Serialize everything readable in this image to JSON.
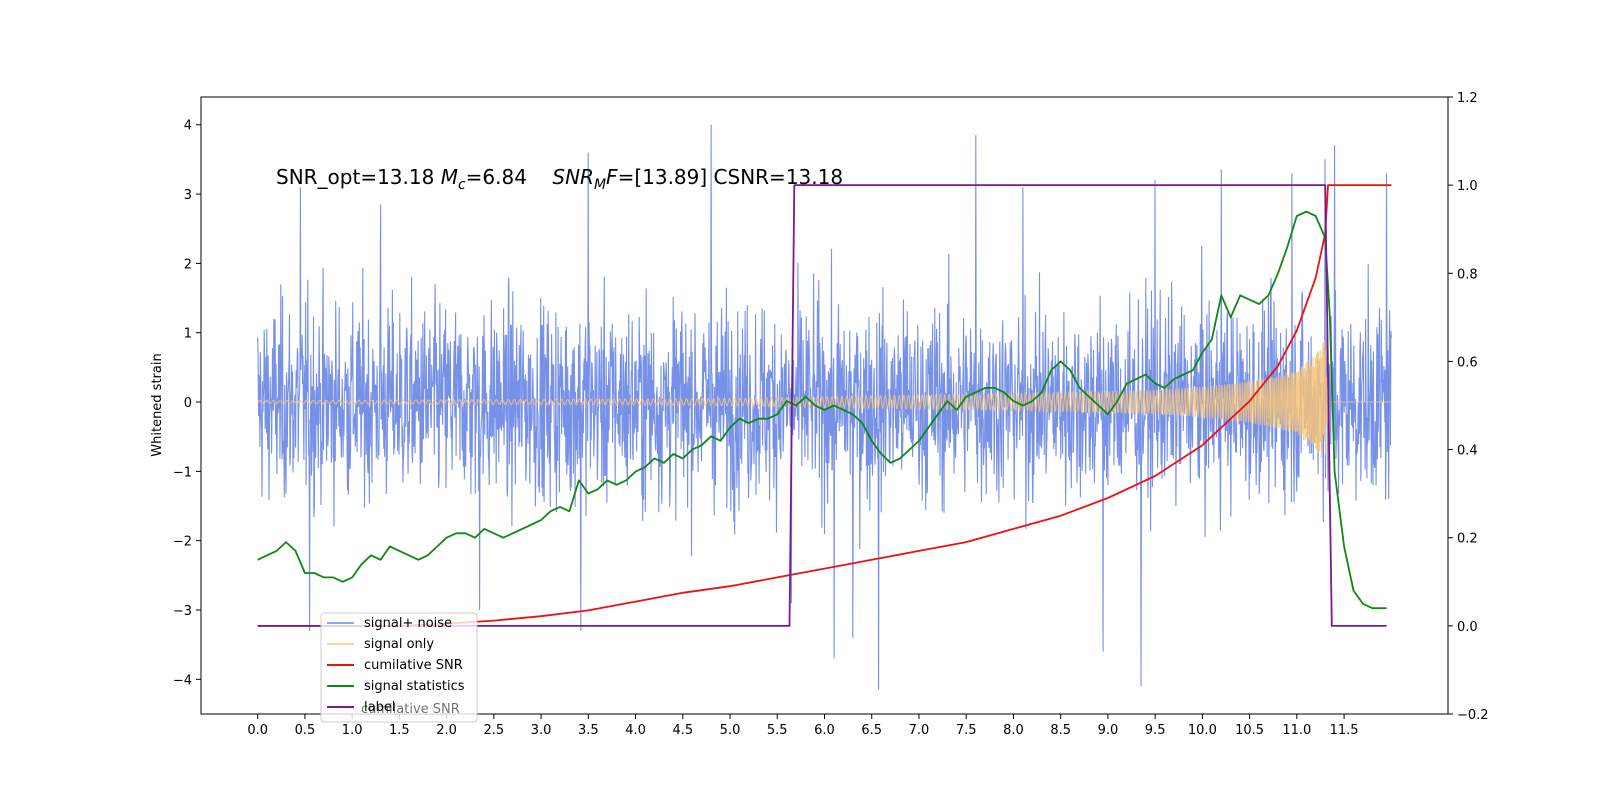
{
  "chart_data": {
    "type": "line",
    "title": "",
    "xlabel": "",
    "ylabel": "Whitened strain",
    "xlim": [
      -0.6,
      12.6
    ],
    "ylim": [
      -4.5,
      4.4
    ],
    "y2lim": [
      -0.2,
      1.2
    ],
    "x_ticks": [
      "0.0",
      "0.5",
      "1.0",
      "1.5",
      "2.0",
      "2.5",
      "3.0",
      "3.5",
      "4.0",
      "4.5",
      "5.0",
      "5.5",
      "6.0",
      "6.5",
      "7.0",
      "7.5",
      "8.0",
      "8.5",
      "9.0",
      "9.5",
      "10.0",
      "10.5",
      "11.0",
      "11.5"
    ],
    "y_ticks": [
      "−4",
      "−3",
      "−2",
      "−1",
      "0",
      "1",
      "2",
      "3",
      "4"
    ],
    "y2_ticks": [
      "−0.2",
      "0.0",
      "0.2",
      "0.4",
      "0.6",
      "0.8",
      "1.0",
      "1.2"
    ],
    "annotation": {
      "part1": "SNR_opt=13.18 ",
      "mc_symbol": "M",
      "mc_sub": "c",
      "mc_value": "=6.84    ",
      "snr_symbol": "SNR",
      "snr_sub": "M",
      "snr_f": "F",
      "snr_value": "=[13.89] CSNR=13.18"
    },
    "grid": false,
    "legend_position": "lower-left",
    "legend_ghost_text": "cumilative SNR",
    "series": [
      {
        "name": "signal+ noise",
        "color": "#6b88e6",
        "axis": "left",
        "kind": "noise",
        "x_range": [
          0.0,
          12.0
        ],
        "typical_amplitude": 1.6,
        "peaks": [
          {
            "x": 0.45,
            "y": 3.1
          },
          {
            "x": 0.55,
            "y": -3.3
          },
          {
            "x": 1.3,
            "y": 2.85
          },
          {
            "x": 2.35,
            "y": -3.0
          },
          {
            "x": 3.42,
            "y": -3.3
          },
          {
            "x": 3.5,
            "y": 3.6
          },
          {
            "x": 4.8,
            "y": 4.0
          },
          {
            "x": 5.65,
            "y": -2.9
          },
          {
            "x": 6.1,
            "y": -3.7
          },
          {
            "x": 6.3,
            "y": -3.4
          },
          {
            "x": 6.57,
            "y": -4.15
          },
          {
            "x": 7.6,
            "y": 3.85
          },
          {
            "x": 8.1,
            "y": 3.1
          },
          {
            "x": 8.95,
            "y": -3.6
          },
          {
            "x": 9.35,
            "y": -4.1
          },
          {
            "x": 9.5,
            "y": 3.2
          },
          {
            "x": 10.2,
            "y": 3.35
          },
          {
            "x": 10.95,
            "y": 3.3
          },
          {
            "x": 11.3,
            "y": 3.5
          },
          {
            "x": 11.4,
            "y": 3.7
          },
          {
            "x": 11.95,
            "y": 3.3
          }
        ]
      },
      {
        "name": "signal only",
        "color": "#f5c27a",
        "axis": "left",
        "kind": "chirp",
        "x_range": [
          0.0,
          12.0
        ],
        "envelope": [
          [
            0.0,
            0.02
          ],
          [
            5.0,
            0.05
          ],
          [
            6.0,
            0.08
          ],
          [
            8.0,
            0.12
          ],
          [
            9.5,
            0.17
          ],
          [
            10.0,
            0.22
          ],
          [
            10.5,
            0.3
          ],
          [
            10.8,
            0.38
          ],
          [
            11.0,
            0.48
          ],
          [
            11.2,
            0.68
          ],
          [
            11.3,
            0.9
          ],
          [
            11.33,
            0.0
          ],
          [
            12.0,
            0.0
          ]
        ]
      },
      {
        "name": "cumilative SNR",
        "color": "#ee1111",
        "axis": "right",
        "kind": "line",
        "x": [
          0.0,
          0.5,
          1.0,
          1.5,
          2.0,
          2.5,
          3.0,
          3.5,
          4.0,
          4.5,
          5.0,
          5.5,
          6.0,
          6.5,
          7.0,
          7.5,
          8.0,
          8.5,
          9.0,
          9.5,
          10.0,
          10.5,
          10.8,
          11.0,
          11.2,
          11.3,
          11.33,
          11.5,
          11.7,
          11.75,
          12.0
        ],
        "y": [
          0.0,
          0.0,
          0.0,
          0.0,
          0.005,
          0.012,
          0.022,
          0.035,
          0.055,
          0.075,
          0.09,
          0.11,
          0.13,
          0.15,
          0.17,
          0.19,
          0.22,
          0.25,
          0.29,
          0.34,
          0.41,
          0.51,
          0.59,
          0.67,
          0.79,
          0.89,
          1.0,
          1.0,
          1.0,
          1.0,
          1.0
        ]
      },
      {
        "name": "signal statistics",
        "color": "#118811",
        "axis": "right",
        "kind": "line",
        "x": [
          0.0,
          0.1,
          0.2,
          0.3,
          0.4,
          0.5,
          0.6,
          0.7,
          0.8,
          0.9,
          1.0,
          1.1,
          1.2,
          1.3,
          1.4,
          1.5,
          1.6,
          1.7,
          1.8,
          1.9,
          2.0,
          2.1,
          2.2,
          2.3,
          2.4,
          2.5,
          2.6,
          2.7,
          2.8,
          2.9,
          3.0,
          3.1,
          3.2,
          3.3,
          3.4,
          3.5,
          3.6,
          3.7,
          3.8,
          3.9,
          4.0,
          4.1,
          4.2,
          4.3,
          4.4,
          4.5,
          4.6,
          4.7,
          4.8,
          4.9,
          5.0,
          5.1,
          5.2,
          5.3,
          5.4,
          5.5,
          5.6,
          5.7,
          5.8,
          5.9,
          6.0,
          6.1,
          6.2,
          6.3,
          6.4,
          6.5,
          6.6,
          6.7,
          6.8,
          6.9,
          7.0,
          7.1,
          7.2,
          7.3,
          7.4,
          7.5,
          7.6,
          7.7,
          7.8,
          7.9,
          8.0,
          8.1,
          8.2,
          8.3,
          8.4,
          8.5,
          8.6,
          8.7,
          8.8,
          8.9,
          9.0,
          9.1,
          9.2,
          9.3,
          9.4,
          9.5,
          9.6,
          9.7,
          9.8,
          9.9,
          10.0,
          10.1,
          10.2,
          10.3,
          10.4,
          10.5,
          10.6,
          10.7,
          10.8,
          10.9,
          11.0,
          11.1,
          11.2,
          11.3,
          11.35,
          11.4,
          11.5,
          11.6,
          11.7,
          11.8,
          11.9,
          11.95
        ],
        "y": [
          0.15,
          0.16,
          0.17,
          0.19,
          0.17,
          0.12,
          0.12,
          0.11,
          0.11,
          0.1,
          0.11,
          0.14,
          0.16,
          0.15,
          0.18,
          0.17,
          0.16,
          0.15,
          0.16,
          0.18,
          0.2,
          0.21,
          0.21,
          0.2,
          0.22,
          0.21,
          0.2,
          0.21,
          0.22,
          0.23,
          0.24,
          0.26,
          0.27,
          0.26,
          0.33,
          0.3,
          0.31,
          0.33,
          0.32,
          0.33,
          0.35,
          0.36,
          0.38,
          0.37,
          0.39,
          0.38,
          0.4,
          0.41,
          0.43,
          0.42,
          0.45,
          0.47,
          0.46,
          0.47,
          0.47,
          0.48,
          0.51,
          0.5,
          0.52,
          0.5,
          0.49,
          0.5,
          0.49,
          0.48,
          0.46,
          0.42,
          0.39,
          0.37,
          0.38,
          0.4,
          0.42,
          0.45,
          0.48,
          0.51,
          0.49,
          0.52,
          0.53,
          0.54,
          0.54,
          0.53,
          0.51,
          0.5,
          0.51,
          0.53,
          0.58,
          0.6,
          0.58,
          0.54,
          0.52,
          0.5,
          0.48,
          0.51,
          0.55,
          0.56,
          0.57,
          0.55,
          0.54,
          0.56,
          0.57,
          0.58,
          0.62,
          0.65,
          0.75,
          0.7,
          0.75,
          0.74,
          0.73,
          0.75,
          0.8,
          0.86,
          0.93,
          0.94,
          0.93,
          0.88,
          0.7,
          0.35,
          0.18,
          0.08,
          0.05,
          0.04,
          0.04,
          0.04
        ]
      },
      {
        "name": "label",
        "color": "#7a1a8c",
        "axis": "right",
        "kind": "step",
        "x": [
          0.0,
          5.63,
          5.68,
          11.3,
          11.37,
          11.95
        ],
        "y": [
          0.0,
          0.0,
          1.0,
          1.0,
          0.0,
          0.0
        ]
      }
    ]
  }
}
